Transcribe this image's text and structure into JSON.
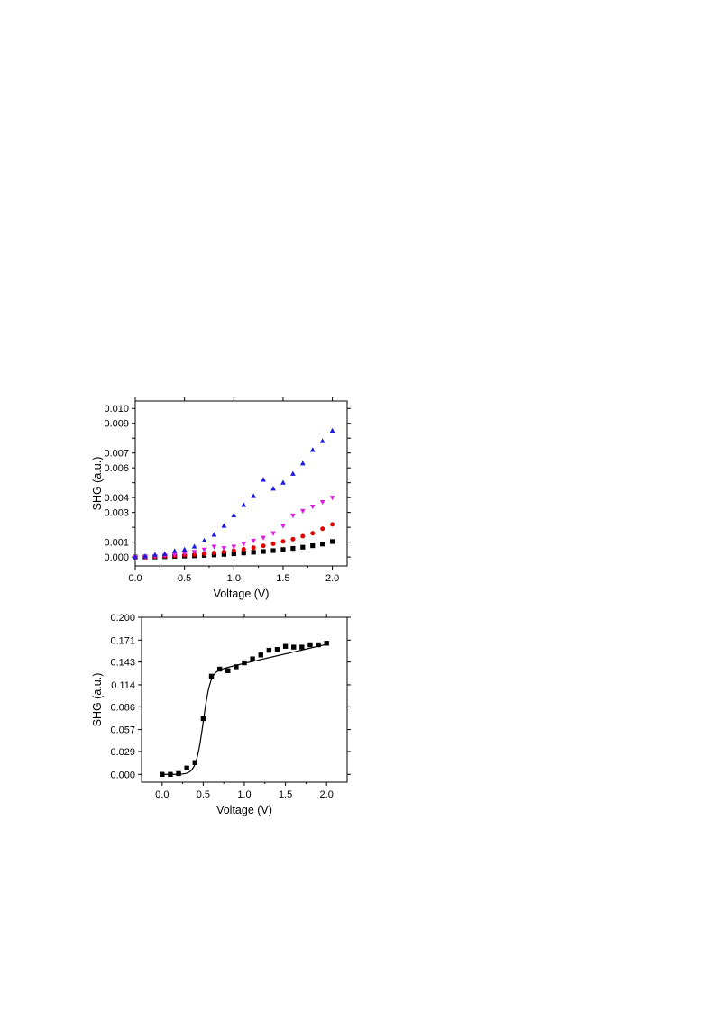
{
  "chart_data": [
    {
      "type": "scatter",
      "xlabel": "Voltage (V)",
      "ylabel": "SHG (a.u.)",
      "xlim": [
        0.0,
        2.15
      ],
      "ylim": [
        -0.0006,
        0.0105
      ],
      "xticks": [
        0.0,
        0.5,
        1.0,
        1.5,
        2.0
      ],
      "xtick_labels": [
        "0.0",
        "0.5",
        "1.0",
        "1.5",
        "2.0"
      ],
      "yticks": [
        0.0,
        0.001,
        0.002,
        0.003,
        0.004,
        0.005,
        0.006,
        0.007,
        0.008,
        0.009,
        0.01
      ],
      "ytick_labels": [
        "0.000",
        "0.001",
        "0.003",
        "0.004",
        "0.006",
        "0.007",
        "0.009",
        "0.010"
      ],
      "ytick_label_values": [
        0.0,
        0.001,
        0.003,
        0.004,
        0.006,
        0.007,
        0.009,
        0.01
      ],
      "x": [
        0.0,
        0.1,
        0.2,
        0.3,
        0.4,
        0.5,
        0.6,
        0.7,
        0.8,
        0.9,
        1.0,
        1.1,
        1.2,
        1.3,
        1.4,
        1.5,
        1.6,
        1.7,
        1.8,
        1.9,
        2.0
      ],
      "series": [
        {
          "marker": "square",
          "color": "#000000",
          "values": [
            0.0,
            0.0,
            0.0,
            2e-05,
            4e-05,
            6e-05,
            8e-05,
            0.00011,
            0.00014,
            0.00018,
            0.00022,
            0.00027,
            0.00032,
            0.00037,
            0.00043,
            0.0005,
            0.00058,
            0.00066,
            0.00076,
            0.00087,
            0.00104
          ]
        },
        {
          "marker": "circle",
          "color": "#e00000",
          "values": [
            0.0,
            0.0,
            2e-05,
            5e-05,
            8e-05,
            0.00012,
            0.00017,
            0.00022,
            0.00028,
            0.00035,
            0.00043,
            0.00052,
            0.00063,
            0.00075,
            0.00089,
            0.00105,
            0.0012,
            0.0014,
            0.0016,
            0.0019,
            0.0022
          ]
        },
        {
          "marker": "triangle-down",
          "color": "#e020e0",
          "values": [
            0.0,
            0.0,
            5e-05,
            0.0001,
            0.00015,
            0.00025,
            0.00035,
            0.0005,
            0.0007,
            0.0006,
            0.0007,
            0.0009,
            0.0011,
            0.0013,
            0.0016,
            0.0021,
            0.0028,
            0.0031,
            0.0034,
            0.0037,
            0.004
          ]
        },
        {
          "marker": "triangle-up",
          "color": "#1a1ae0",
          "values": [
            0.0,
            5e-05,
            0.00015,
            0.0002,
            0.0004,
            0.0005,
            0.0007,
            0.0011,
            0.0015,
            0.0021,
            0.0028,
            0.0035,
            0.0041,
            0.0052,
            0.0046,
            0.005,
            0.0056,
            0.0063,
            0.0072,
            0.0078,
            0.0085
          ]
        }
      ]
    },
    {
      "type": "line",
      "xlabel": "Voltage (V)",
      "ylabel": "SHG (a.u.)",
      "xlim": [
        -0.25,
        2.25
      ],
      "ylim": [
        -0.01,
        0.2
      ],
      "xticks": [
        0.0,
        0.5,
        1.0,
        1.5,
        2.0
      ],
      "xtick_labels": [
        "0.0",
        "0.5",
        "1.0",
        "1.5",
        "2.0"
      ],
      "yticks": [
        0.0,
        0.029,
        0.057,
        0.086,
        0.114,
        0.143,
        0.171,
        0.2
      ],
      "ytick_labels": [
        "0.000",
        "0.029",
        "0.057",
        "0.086",
        "0.114",
        "0.143",
        "0.171",
        "0.200"
      ],
      "x": [
        0.0,
        0.1,
        0.2,
        0.3,
        0.4,
        0.5,
        0.6,
        0.7,
        0.8,
        0.9,
        1.0,
        1.1,
        1.2,
        1.3,
        1.4,
        1.5,
        1.6,
        1.7,
        1.8,
        1.9,
        2.0
      ],
      "series": [
        {
          "marker": "square",
          "color": "#000000",
          "values": [
            0.0,
            0.0,
            0.001,
            0.008,
            0.015,
            0.071,
            0.125,
            0.134,
            0.132,
            0.137,
            0.142,
            0.147,
            0.152,
            0.158,
            0.159,
            0.163,
            0.162,
            0.162,
            0.165,
            0.165,
            0.167
          ]
        }
      ],
      "fit_curve": {
        "color": "#000000",
        "type": "sigmoid",
        "min": 0.0,
        "max": 0.134,
        "center": 0.5,
        "width": 0.045,
        "tail_slope": 0.0243
      }
    }
  ]
}
